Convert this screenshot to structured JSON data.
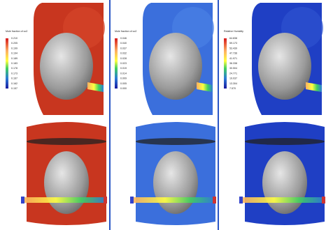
{
  "panels": [
    {
      "legend_title": "Mole fraction of co2",
      "legend_labels": [
        "0.210",
        "0.205",
        "0.199",
        "0.194",
        "0.189",
        "0.183",
        "0.178",
        "0.173",
        "0.167",
        "0.162",
        "0.157"
      ]
    },
    {
      "legend_title": "Mole fraction of co2",
      "legend_labels": [
        "0.046",
        "0.040",
        "0.037",
        "0.032",
        "0.028",
        "0.023",
        "0.019",
        "0.014",
        "0.009",
        "0.005",
        "0.000"
      ]
    },
    {
      "legend_title": "Relative Humidity",
      "legend_labels": [
        "64.838",
        "59.173",
        "53.439",
        "47.736",
        "41.971",
        "36.338",
        "30.504",
        "24.771",
        "19.037",
        "13.304",
        "7.570"
      ]
    }
  ]
}
